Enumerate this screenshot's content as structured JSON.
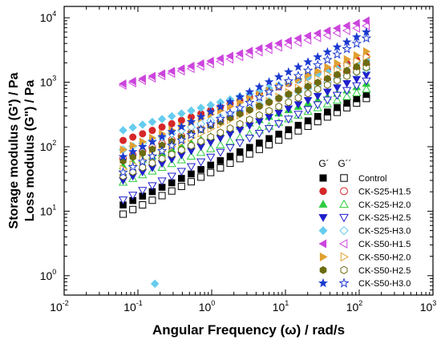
{
  "chart_data": {
    "type": "scatter",
    "title": "",
    "xlabel": "Angular Frequency (ω) / rad/s",
    "ylabel_line1": "Storage modulus (G') / Pa",
    "ylabel_line2": "Loss modulus (G\") / Pa",
    "x_scale": "log",
    "y_scale": "log",
    "xlim": [
      0.01,
      1000
    ],
    "ylim": [
      0.5,
      15000
    ],
    "x_ticks": [
      {
        "base": "10",
        "exp": "-2"
      },
      {
        "base": "10",
        "exp": "-1"
      },
      {
        "base": "10",
        "exp": "0"
      },
      {
        "base": "10",
        "exp": "1"
      },
      {
        "base": "10",
        "exp": "2"
      },
      {
        "base": "10",
        "exp": "3"
      }
    ],
    "y_ticks": [
      {
        "base": "10",
        "exp": "0"
      },
      {
        "base": "10",
        "exp": "1"
      },
      {
        "base": "10",
        "exp": "2"
      },
      {
        "base": "10",
        "exp": "3"
      },
      {
        "base": "10",
        "exp": "4"
      }
    ],
    "legend": {
      "position": "right",
      "header_storage": "G´",
      "header_loss": "G´´"
    },
    "frequency_range": [
      0.063,
      125
    ],
    "points_per_series": 26,
    "series": [
      {
        "name": "Control",
        "marker": "square",
        "color": "#000000",
        "storage_start": 12.5,
        "storage_end": 650,
        "loss_start": 9,
        "loss_end": 560
      },
      {
        "name": "CK-S25-H1.5",
        "marker": "circle",
        "color": "#d62728",
        "storage_start": 125,
        "storage_end": 2500,
        "loss_start": 65,
        "loss_end": 1900
      },
      {
        "name": "CK-S25-H2.0",
        "marker": "triangle-up",
        "color": "#2ecc40",
        "storage_start": 50,
        "storage_end": 950,
        "loss_start": 28,
        "loss_end": 780
      },
      {
        "name": "CK-S25-H2.5",
        "marker": "triangle-down",
        "color": "#1f1fcc",
        "storage_start": 30,
        "storage_end": 1300,
        "loss_start": 15,
        "loss_end": 1050
      },
      {
        "name": "CK-S25-H3.0",
        "marker": "diamond",
        "color": "#66ccee",
        "storage_start": 180,
        "storage_end": 2200,
        "loss_start": 90,
        "loss_end": 1600
      },
      {
        "name": "CK-S50-H1.5",
        "marker": "triangle-left",
        "color": "#cc44dd",
        "storage_start": 950,
        "storage_end": 9000,
        "loss_start": 900,
        "loss_end": 7500
      },
      {
        "name": "CK-S50-H2.0",
        "marker": "triangle-right",
        "color": "#e0a030",
        "storage_start": 90,
        "storage_end": 3000,
        "loss_start": 45,
        "loss_end": 2500
      },
      {
        "name": "CK-S50-H2.5",
        "marker": "hexagon",
        "color": "#6b6b10",
        "storage_start": 60,
        "storage_end": 2000,
        "loss_start": 35,
        "loss_end": 1700
      },
      {
        "name": "CK-S50-H3.0",
        "marker": "star",
        "color": "#1a3ad0",
        "storage_start": 70,
        "storage_end": 6000,
        "loss_start": 40,
        "loss_end": 4800
      }
    ],
    "outlier": {
      "series": "CK-S25-H3.0",
      "x": 0.17,
      "y": 0.75
    }
  }
}
